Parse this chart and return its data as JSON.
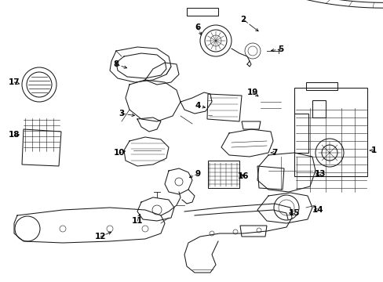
{
  "background_color": "#ffffff",
  "line_color": "#1a1a1a",
  "text_color": "#000000",
  "figsize": [
    4.89,
    3.6
  ],
  "dpi": 100,
  "label_fontsize": 7.5,
  "arrow_lw": 0.55,
  "part_lw": 0.75
}
